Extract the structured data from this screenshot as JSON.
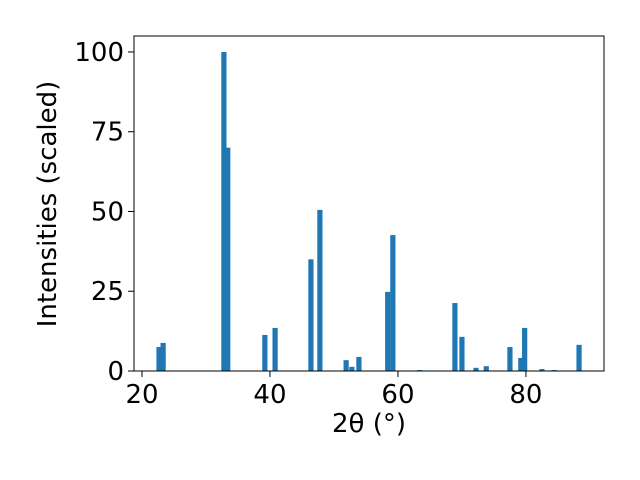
{
  "chart_data": {
    "type": "bar",
    "x_label": "2θ (°)",
    "y_label": "Intensities (scaled)",
    "x": [
      22.66,
      23.3,
      32.8,
      33.4,
      39.2,
      40.8,
      46.4,
      47.8,
      51.9,
      52.8,
      53.9,
      58.4,
      59.2,
      63.4,
      68.9,
      70.0,
      72.2,
      73.8,
      77.5,
      79.2,
      79.8,
      82.5,
      84.4,
      88.3
    ],
    "values": [
      7.5,
      8.8,
      100,
      70,
      11.3,
      13.5,
      35,
      50.5,
      3.4,
      1.3,
      4.4,
      24.8,
      42.6,
      0.3,
      21.3,
      10.7,
      1.0,
      1.5,
      7.5,
      4.1,
      13.5,
      0.6,
      0.3,
      8.2
    ],
    "color": "#1f77b4",
    "xlim": [
      18.75,
      92.2
    ],
    "ylim": [
      0,
      105
    ],
    "xticks": [
      20,
      40,
      60,
      80
    ],
    "yticks": [
      0,
      25,
      50,
      75,
      100
    ]
  }
}
